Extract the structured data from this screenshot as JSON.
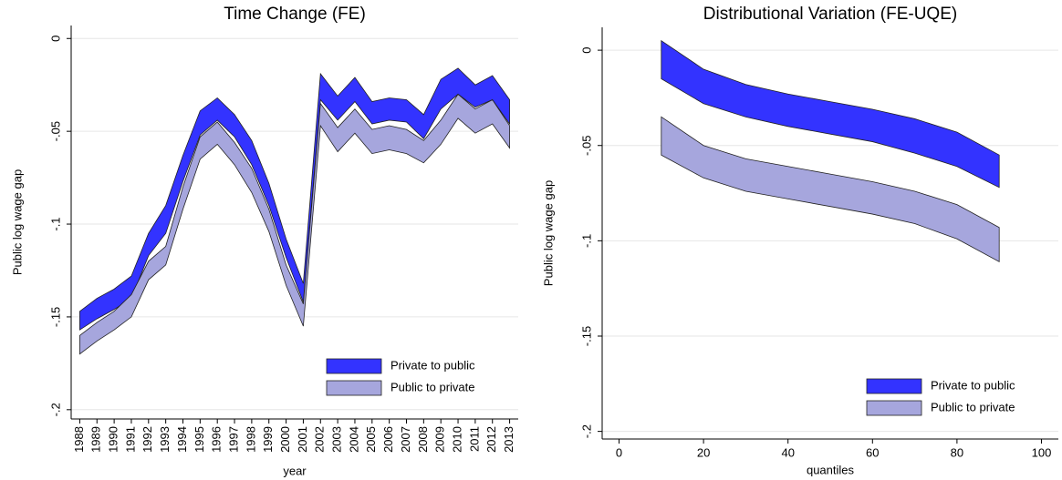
{
  "chart_data": [
    {
      "type": "range-area",
      "title": "Time Change (FE)",
      "x_label": "year",
      "y_label": "Public log wage gap",
      "x": [
        1988,
        1989,
        1990,
        1991,
        1992,
        1993,
        1994,
        1995,
        1996,
        1997,
        1998,
        1999,
        2000,
        2001,
        2002,
        2003,
        2004,
        2005,
        2006,
        2007,
        2008,
        2009,
        2010,
        2011,
        2012,
        2013
      ],
      "xlim": [
        1987.5,
        2013.5
      ],
      "xticks": [
        1988,
        1989,
        1990,
        1991,
        1992,
        1993,
        1994,
        1995,
        1996,
        1997,
        1998,
        1999,
        2000,
        2001,
        2002,
        2003,
        2004,
        2005,
        2006,
        2007,
        2008,
        2009,
        2010,
        2011,
        2012,
        2013
      ],
      "ylim": [
        -0.205,
        0.007
      ],
      "yticks": [
        {
          "value": -0.2,
          "label": "-.2"
        },
        {
          "value": -0.15,
          "label": "-.15"
        },
        {
          "value": -0.1,
          "label": "-.1"
        },
        {
          "value": -0.05,
          "label": "-.05"
        },
        0
      ],
      "grid": true,
      "legend_position": "lower right",
      "series": [
        {
          "name": "Private to public",
          "color": "#3333ff",
          "upper": [
            -0.147,
            -0.14,
            -0.135,
            -0.128,
            -0.105,
            -0.09,
            -0.063,
            -0.039,
            -0.032,
            -0.041,
            -0.055,
            -0.078,
            -0.108,
            -0.132,
            -0.019,
            -0.031,
            -0.021,
            -0.034,
            -0.032,
            -0.033,
            -0.041,
            -0.022,
            -0.016,
            -0.025,
            -0.02,
            -0.033
          ],
          "lower": [
            -0.157,
            -0.151,
            -0.146,
            -0.14,
            -0.117,
            -0.105,
            -0.077,
            -0.052,
            -0.044,
            -0.053,
            -0.068,
            -0.09,
            -0.118,
            -0.142,
            -0.033,
            -0.044,
            -0.034,
            -0.046,
            -0.044,
            -0.045,
            -0.054,
            -0.038,
            -0.03,
            -0.037,
            -0.033,
            -0.046
          ]
        },
        {
          "name": "Public to private",
          "color": "#a6a6dd",
          "upper": [
            -0.16,
            -0.153,
            -0.147,
            -0.138,
            -0.12,
            -0.112,
            -0.08,
            -0.053,
            -0.045,
            -0.056,
            -0.07,
            -0.092,
            -0.122,
            -0.143,
            -0.035,
            -0.048,
            -0.038,
            -0.049,
            -0.047,
            -0.049,
            -0.055,
            -0.044,
            -0.03,
            -0.038,
            -0.033,
            -0.047
          ],
          "lower": [
            -0.17,
            -0.163,
            -0.157,
            -0.15,
            -0.13,
            -0.122,
            -0.092,
            -0.065,
            -0.057,
            -0.068,
            -0.083,
            -0.104,
            -0.133,
            -0.155,
            -0.047,
            -0.061,
            -0.051,
            -0.062,
            -0.06,
            -0.062,
            -0.067,
            -0.057,
            -0.043,
            -0.051,
            -0.046,
            -0.059
          ]
        }
      ]
    },
    {
      "type": "range-area",
      "title": "Distributional Variation (FE-UQE)",
      "x_label": "quantiles",
      "y_label": "Public log wage gap",
      "x": [
        10,
        20,
        30,
        40,
        50,
        60,
        70,
        80,
        90
      ],
      "xlim": [
        -4,
        104
      ],
      "xticks": [
        0,
        20,
        40,
        60,
        80,
        100
      ],
      "ylim": [
        -0.204,
        0.012
      ],
      "yticks": [
        {
          "value": -0.2,
          "label": "-.2"
        },
        {
          "value": -0.15,
          "label": "-.15"
        },
        {
          "value": -0.1,
          "label": "-.1"
        },
        {
          "value": -0.05,
          "label": "-.05"
        },
        0
      ],
      "grid": true,
      "legend_position": "lower right",
      "series": [
        {
          "name": "Private to public",
          "color": "#3333ff",
          "upper": [
            0.005,
            -0.01,
            -0.018,
            -0.023,
            -0.027,
            -0.031,
            -0.036,
            -0.043,
            -0.055
          ],
          "lower": [
            -0.015,
            -0.028,
            -0.035,
            -0.04,
            -0.044,
            -0.048,
            -0.054,
            -0.061,
            -0.072
          ]
        },
        {
          "name": "Public to private",
          "color": "#a6a6dd",
          "upper": [
            -0.035,
            -0.05,
            -0.057,
            -0.061,
            -0.065,
            -0.069,
            -0.074,
            -0.081,
            -0.093
          ],
          "lower": [
            -0.055,
            -0.067,
            -0.074,
            -0.078,
            -0.082,
            -0.086,
            -0.091,
            -0.099,
            -0.111
          ]
        }
      ]
    }
  ]
}
